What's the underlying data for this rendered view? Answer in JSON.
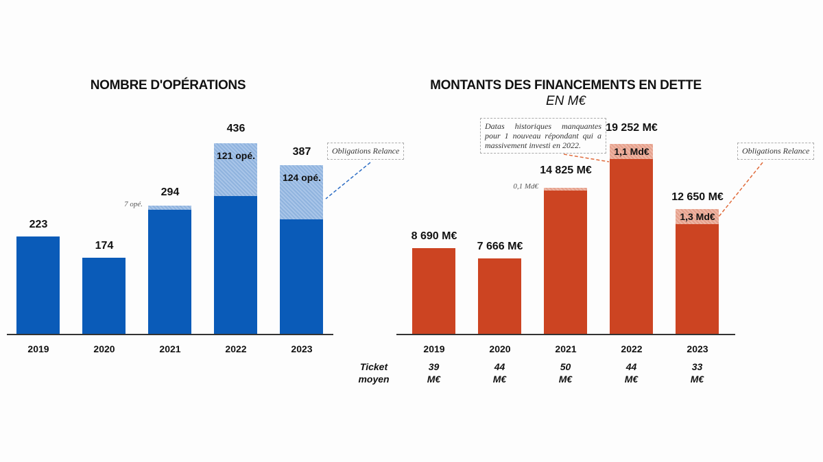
{
  "chart_data": [
    {
      "type": "bar",
      "title": "NOMBRE D'OPÉRATIONS",
      "categories": [
        "2019",
        "2020",
        "2021",
        "2022",
        "2023"
      ],
      "values": [
        223,
        174,
        294,
        436,
        387
      ],
      "highlight": [
        0,
        0,
        7,
        121,
        124
      ],
      "value_labels": [
        "223",
        "174",
        "294",
        "436",
        "387"
      ],
      "highlight_labels": [
        "",
        "",
        "7 opé.",
        "121 opé.",
        "124 opé."
      ],
      "note": "Obligations Relance",
      "color": "#0a5bb8",
      "highlight_color": "#a9c5e8"
    },
    {
      "type": "bar",
      "title": "MONTANTS DES FINANCEMENTS EN DETTE",
      "subtitle": "EN M€",
      "categories": [
        "2019",
        "2020",
        "2021",
        "2022",
        "2023"
      ],
      "values": [
        8690,
        7666,
        14825,
        19252,
        12650
      ],
      "highlight": [
        0,
        0,
        100,
        1100,
        1300
      ],
      "value_labels": [
        "8 690 M€",
        "7 666 M€",
        "14 825 M€",
        "19 252 M€",
        "12 650 M€"
      ],
      "highlight_labels": [
        "",
        "",
        "0,1 Md€",
        "1,1 Md€",
        "1,3 Md€"
      ],
      "note": "Obligations Relance",
      "note2": "Datas historiques manquantes pour 1 nouveau répondant qui a massivement investi en 2022.",
      "color": "#cc4422",
      "highlight_color": "#eeb6a5"
    }
  ],
  "ticket": {
    "label1": "Ticket",
    "label2": "moyen",
    "values": [
      [
        "39",
        "M€"
      ],
      [
        "44",
        "M€"
      ],
      [
        "50",
        "M€"
      ],
      [
        "44",
        "M€"
      ],
      [
        "33",
        "M€"
      ]
    ]
  }
}
